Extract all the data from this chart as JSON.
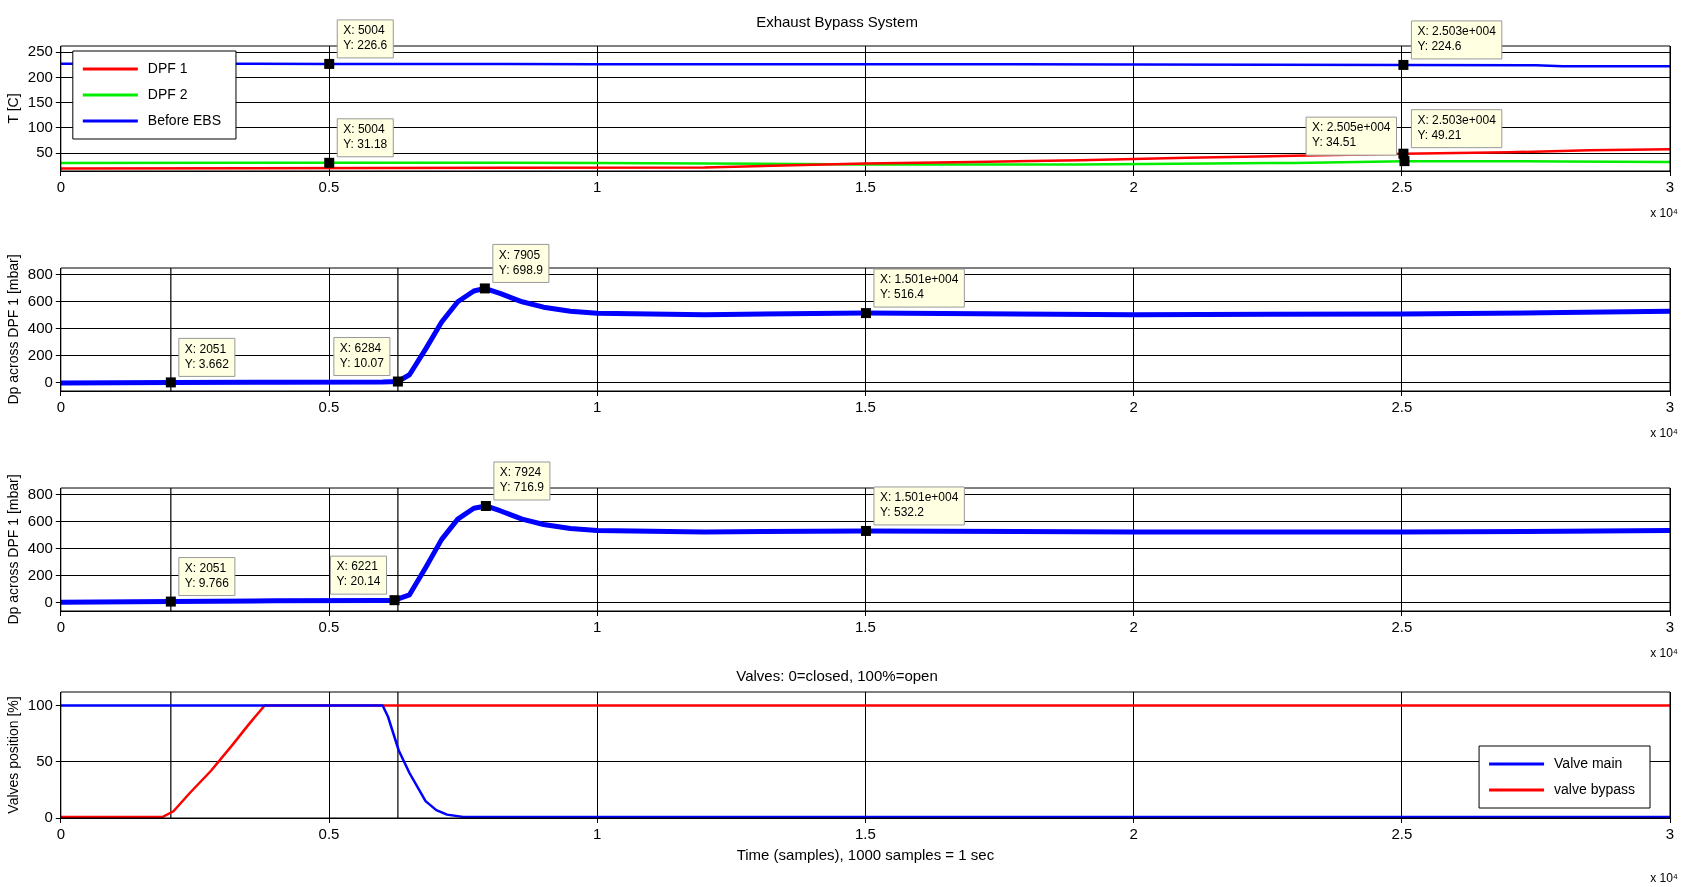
{
  "chart_data": [
    {
      "type": "line",
      "title": "Exhaust Bypass System",
      "ylabel": "T [C]",
      "xlim": [
        0,
        3
      ],
      "ylim": [
        15,
        262
      ],
      "xticks": [
        0,
        0.5,
        1,
        1.5,
        2,
        2.5,
        3
      ],
      "yticks": [
        50,
        100,
        150,
        200,
        250
      ],
      "grid": true,
      "legend": "top left",
      "marker": "none",
      "line_style": "solid",
      "series": [
        {
          "name": "DPF 1",
          "color": "#ff0000",
          "x": [
            0,
            1.2,
            1.5,
            1.7,
            1.9,
            2.1,
            2.3,
            2.503,
            2.7,
            2.85,
            3
          ],
          "values": [
            20,
            22,
            30,
            33,
            36,
            41,
            45,
            49.21,
            52,
            56,
            58
          ]
        },
        {
          "name": "DPF 2",
          "color": "#00ee00",
          "x": [
            0,
            0.5004,
            1,
            1.2,
            1.5,
            1.9,
            2.3,
            2.505,
            2.8,
            3
          ],
          "values": [
            31,
            31.18,
            31,
            30,
            28,
            28,
            31,
            34.51,
            34,
            33
          ]
        },
        {
          "name": "Before EBS",
          "color": "#0000ff",
          "x": [
            0,
            0.5004,
            1,
            1.5,
            2,
            2.503,
            2.75,
            2.8,
            3
          ],
          "values": [
            227,
            226.6,
            226,
            226,
            225.5,
            224.6,
            224,
            222,
            222
          ]
        }
      ],
      "annotations": [
        {
          "text": "X: 5004\nY: 226.6",
          "x": 0.5004,
          "y": 226.6
        },
        {
          "text": "X: 5004\nY: 31.18",
          "x": 0.5004,
          "y": 31.18
        },
        {
          "text": "X: 2.503e+004\nY: 224.6",
          "x": 2.503,
          "y": 224.6
        },
        {
          "text": "X: 2.503e+004\nY: 49.21",
          "x": 2.503,
          "y": 49.21
        },
        {
          "text": "X: 2.505e+004\nY: 34.51",
          "x": 2.505,
          "y": 34.51
        },
        "x 10⁴"
      ]
    },
    {
      "type": "line",
      "ylabel": "Dp across DPF 1 [mbar]",
      "xlim": [
        0,
        3
      ],
      "ylim": [
        -60,
        850
      ],
      "xticks": [
        0,
        0.5,
        1,
        1.5,
        2,
        2.5,
        3
      ],
      "yticks": [
        0,
        200,
        400,
        600,
        800
      ],
      "grid": true,
      "marker": "none",
      "line_style": "solid",
      "series": [
        {
          "color": "#0000ff",
          "x": [
            0,
            0.2051,
            0.4,
            0.6,
            0.6284,
            0.65,
            0.68,
            0.71,
            0.74,
            0.77,
            0.7905,
            0.82,
            0.86,
            0.9,
            0.95,
            1,
            1.2,
            1.501,
            2,
            2.5,
            2.8,
            3
          ],
          "values": [
            0,
            3.662,
            5,
            6,
            10.07,
            60,
            250,
            450,
            600,
            680,
            698.9,
            660,
            600,
            560,
            530,
            515,
            505,
            516.4,
            505,
            510,
            520,
            530
          ]
        }
      ],
      "ref_lines": [
        {
          "axis": "x",
          "value": 0.2051,
          "color": "#000000"
        },
        {
          "axis": "x",
          "value": 0.6284,
          "color": "#000000"
        }
      ],
      "annotations": [
        {
          "text": "X: 2051\nY: 3.662",
          "x": 0.2051,
          "y": 3.662
        },
        {
          "text": "X: 6284\nY: 10.07",
          "x": 0.6284,
          "y": 10.07
        },
        {
          "text": "X: 7905\nY: 698.9",
          "x": 0.7905,
          "y": 698.9
        },
        {
          "text": "X: 1.501e+004\nY: 516.4",
          "x": 1.501,
          "y": 516.4
        },
        "x 10⁴"
      ]
    },
    {
      "type": "line",
      "ylabel": "Dp across DPF 1 [mbar]",
      "xlim": [
        0,
        3
      ],
      "ylim": [
        -60,
        850
      ],
      "xticks": [
        0,
        0.5,
        1,
        1.5,
        2,
        2.5,
        3
      ],
      "yticks": [
        0,
        200,
        400,
        600,
        800
      ],
      "grid": true,
      "marker": "none",
      "line_style": "solid",
      "series": [
        {
          "color": "#0000ff",
          "x": [
            0,
            0.2051,
            0.4,
            0.6,
            0.6221,
            0.65,
            0.68,
            0.71,
            0.74,
            0.77,
            0.7924,
            0.82,
            0.86,
            0.9,
            0.95,
            1,
            1.2,
            1.501,
            2,
            2.5,
            2.8,
            3
          ],
          "values": [
            5,
            9.766,
            15,
            18,
            20.14,
            60,
            260,
            470,
            620,
            700,
            716.9,
            680,
            620,
            580,
            550,
            535,
            525,
            532.2,
            525,
            525,
            530,
            535
          ]
        }
      ],
      "ref_lines": [
        {
          "axis": "x",
          "value": 0.2051,
          "color": "#000000"
        },
        {
          "axis": "x",
          "value": 0.6284,
          "color": "#000000"
        }
      ],
      "annotations": [
        {
          "text": "X: 2051\nY: 9.766",
          "x": 0.2051,
          "y": 9.766
        },
        {
          "text": "X: 6221\nY: 20.14",
          "x": 0.6221,
          "y": 20.14
        },
        {
          "text": "X: 7924\nY: 716.9",
          "x": 0.7924,
          "y": 716.9
        },
        {
          "text": "X: 1.501e+004\nY: 532.2",
          "x": 1.501,
          "y": 532.2
        },
        "x 10⁴"
      ]
    },
    {
      "type": "line",
      "title": "Valves: 0=closed, 100%=open",
      "xlabel": "Time (samples), 1000 samples = 1 sec",
      "ylabel": "Valves position [%]",
      "xlim": [
        0,
        3
      ],
      "ylim": [
        0,
        112
      ],
      "xticks": [
        0,
        0.5,
        1,
        1.5,
        2,
        2.5,
        3
      ],
      "yticks": [
        0,
        50,
        100
      ],
      "grid": true,
      "legend": "bottom right",
      "marker": "none",
      "line_style": "solid",
      "series": [
        {
          "name": "Valve main",
          "color": "#0000ff",
          "x": [
            0,
            0.6,
            0.61,
            0.63,
            0.65,
            0.68,
            0.7,
            0.72,
            0.75,
            3
          ],
          "values": [
            100,
            100,
            90,
            60,
            40,
            15,
            7,
            3,
            1,
            1
          ]
        },
        {
          "name": "valve bypass",
          "color": "#ff0000",
          "x": [
            0,
            0.19,
            0.21,
            0.24,
            0.28,
            0.32,
            0.35,
            0.38,
            3
          ],
          "values": [
            1,
            1,
            6,
            22,
            42,
            65,
            83,
            100,
            100
          ]
        }
      ],
      "ref_lines": [
        {
          "axis": "x",
          "value": 0.2051,
          "color": "#000000"
        },
        {
          "axis": "x",
          "value": 0.6284,
          "color": "#000000"
        }
      ],
      "annotations": [
        "x 10⁴"
      ]
    }
  ]
}
